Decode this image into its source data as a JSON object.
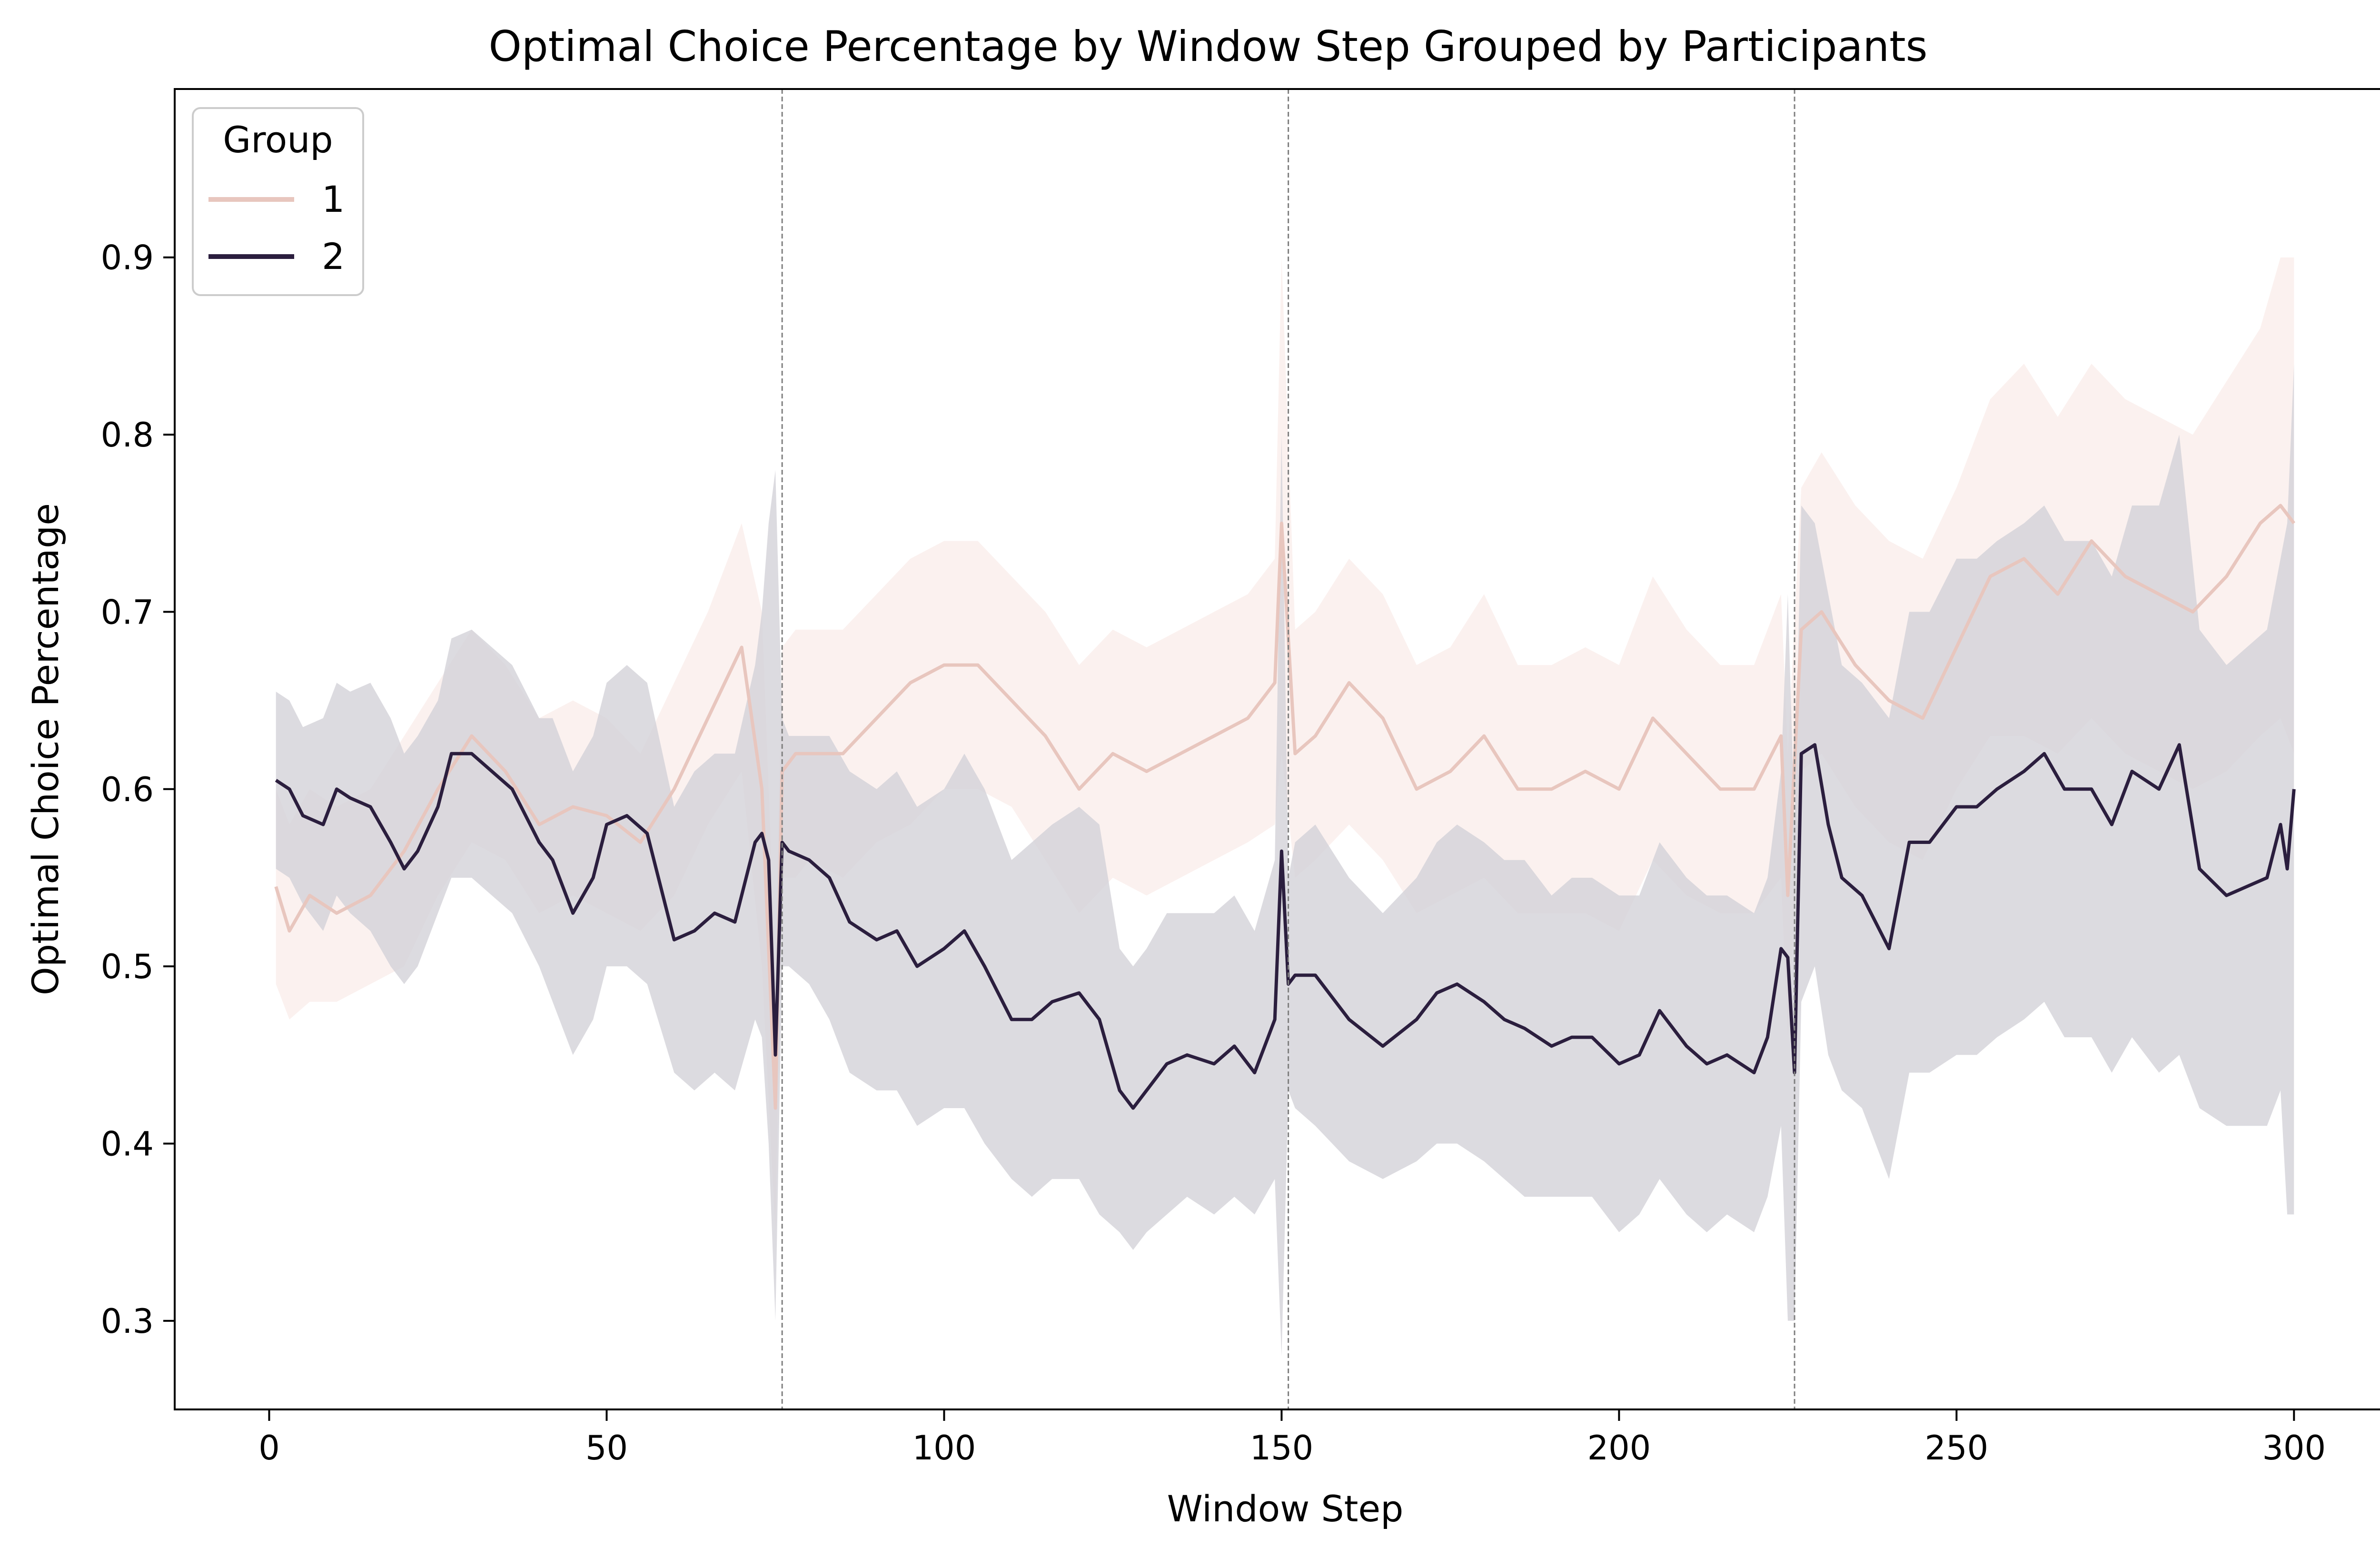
{
  "chart_data": {
    "type": "line",
    "title": "Optimal Choice Percentage by Window Step Grouped by Participants",
    "xlabel": "Window Step",
    "ylabel": "Optimal Choice Percentage",
    "xlim": [
      -14,
      315
    ],
    "ylim": [
      0.25,
      0.995
    ],
    "xticks": [
      0,
      50,
      100,
      150,
      200,
      250,
      300
    ],
    "xtick_labels": [
      "0",
      "50",
      "100",
      "150",
      "200",
      "250",
      "300"
    ],
    "yticks": [
      0.3,
      0.4,
      0.5,
      0.6,
      0.7,
      0.8,
      0.9
    ],
    "ytick_labels": [
      "0.3",
      "0.4",
      "0.5",
      "0.6",
      "0.7",
      "0.8",
      "0.9"
    ],
    "vlines": [
      76,
      151,
      226
    ],
    "legend": {
      "title": "Group",
      "placement": "upper left"
    },
    "series": [
      {
        "name": "1",
        "color": "#e8c6be",
        "band_color": "#f7e6e1",
        "x": [
          1,
          3,
          6,
          10,
          15,
          20,
          25,
          30,
          35,
          40,
          45,
          50,
          55,
          60,
          65,
          70,
          73,
          75,
          76,
          78,
          80,
          85,
          90,
          95,
          100,
          105,
          110,
          115,
          120,
          125,
          130,
          135,
          140,
          145,
          149,
          150,
          152,
          155,
          160,
          165,
          170,
          175,
          180,
          185,
          190,
          195,
          200,
          205,
          210,
          215,
          220,
          224,
          225,
          227,
          230,
          235,
          240,
          245,
          250,
          255,
          260,
          265,
          270,
          275,
          280,
          285,
          290,
          295,
          298,
          300
        ],
        "y": [
          0.545,
          0.52,
          0.54,
          0.53,
          0.54,
          0.565,
          0.6,
          0.63,
          0.61,
          0.58,
          0.59,
          0.585,
          0.57,
          0.6,
          0.64,
          0.68,
          0.6,
          0.42,
          0.61,
          0.62,
          0.62,
          0.62,
          0.64,
          0.66,
          0.67,
          0.67,
          0.65,
          0.63,
          0.6,
          0.62,
          0.61,
          0.62,
          0.63,
          0.64,
          0.66,
          0.75,
          0.62,
          0.63,
          0.66,
          0.64,
          0.6,
          0.61,
          0.63,
          0.6,
          0.6,
          0.61,
          0.6,
          0.64,
          0.62,
          0.6,
          0.6,
          0.63,
          0.54,
          0.69,
          0.7,
          0.67,
          0.65,
          0.64,
          0.68,
          0.72,
          0.73,
          0.71,
          0.74,
          0.72,
          0.71,
          0.7,
          0.72,
          0.75,
          0.76,
          0.75
        ],
        "lower": [
          0.49,
          0.47,
          0.48,
          0.48,
          0.49,
          0.5,
          0.54,
          0.57,
          0.56,
          0.53,
          0.54,
          0.53,
          0.52,
          0.54,
          0.58,
          0.61,
          0.5,
          0.35,
          0.55,
          0.55,
          0.56,
          0.55,
          0.57,
          0.58,
          0.6,
          0.6,
          0.59,
          0.56,
          0.53,
          0.55,
          0.54,
          0.55,
          0.56,
          0.57,
          0.58,
          0.62,
          0.55,
          0.56,
          0.58,
          0.56,
          0.53,
          0.54,
          0.55,
          0.53,
          0.53,
          0.53,
          0.52,
          0.56,
          0.54,
          0.53,
          0.53,
          0.55,
          0.46,
          0.61,
          0.62,
          0.59,
          0.57,
          0.56,
          0.6,
          0.63,
          0.63,
          0.62,
          0.64,
          0.62,
          0.61,
          0.6,
          0.61,
          0.63,
          0.64,
          0.62
        ],
        "upper": [
          0.6,
          0.58,
          0.6,
          0.59,
          0.6,
          0.63,
          0.66,
          0.69,
          0.67,
          0.64,
          0.65,
          0.64,
          0.62,
          0.66,
          0.7,
          0.75,
          0.7,
          0.5,
          0.68,
          0.69,
          0.69,
          0.69,
          0.71,
          0.73,
          0.74,
          0.74,
          0.72,
          0.7,
          0.67,
          0.69,
          0.68,
          0.69,
          0.7,
          0.71,
          0.73,
          0.9,
          0.69,
          0.7,
          0.73,
          0.71,
          0.67,
          0.68,
          0.71,
          0.67,
          0.67,
          0.68,
          0.67,
          0.72,
          0.69,
          0.67,
          0.67,
          0.71,
          0.62,
          0.77,
          0.79,
          0.76,
          0.74,
          0.73,
          0.77,
          0.82,
          0.84,
          0.81,
          0.84,
          0.82,
          0.81,
          0.8,
          0.83,
          0.86,
          0.9,
          0.9
        ]
      },
      {
        "name": "2",
        "color": "#2b1e3e",
        "band_color": "#d3d2d8",
        "x": [
          1,
          3,
          5,
          8,
          10,
          12,
          15,
          18,
          20,
          22,
          25,
          27,
          30,
          33,
          36,
          40,
          42,
          45,
          48,
          50,
          53,
          56,
          60,
          63,
          66,
          69,
          72,
          73,
          74,
          75,
          76,
          77,
          80,
          83,
          86,
          90,
          93,
          96,
          100,
          103,
          106,
          110,
          113,
          116,
          120,
          123,
          126,
          128,
          130,
          133,
          136,
          140,
          143,
          146,
          149,
          150,
          151,
          152,
          155,
          160,
          165,
          170,
          173,
          176,
          180,
          183,
          186,
          190,
          193,
          196,
          200,
          203,
          206,
          210,
          213,
          216,
          220,
          222,
          224,
          225,
          226,
          227,
          229,
          231,
          233,
          236,
          240,
          243,
          246,
          250,
          253,
          256,
          260,
          263,
          266,
          270,
          273,
          276,
          280,
          283,
          286,
          290,
          293,
          296,
          298,
          299,
          300
        ],
        "y": [
          0.605,
          0.6,
          0.585,
          0.58,
          0.6,
          0.595,
          0.59,
          0.57,
          0.555,
          0.565,
          0.59,
          0.62,
          0.62,
          0.61,
          0.6,
          0.57,
          0.56,
          0.53,
          0.55,
          0.58,
          0.585,
          0.575,
          0.515,
          0.52,
          0.53,
          0.525,
          0.57,
          0.575,
          0.56,
          0.45,
          0.57,
          0.565,
          0.56,
          0.55,
          0.525,
          0.515,
          0.52,
          0.5,
          0.51,
          0.52,
          0.5,
          0.47,
          0.47,
          0.48,
          0.485,
          0.47,
          0.43,
          0.42,
          0.43,
          0.445,
          0.45,
          0.445,
          0.455,
          0.44,
          0.47,
          0.565,
          0.49,
          0.495,
          0.495,
          0.47,
          0.455,
          0.47,
          0.485,
          0.49,
          0.48,
          0.47,
          0.465,
          0.455,
          0.46,
          0.46,
          0.445,
          0.45,
          0.475,
          0.455,
          0.445,
          0.45,
          0.44,
          0.46,
          0.51,
          0.505,
          0.44,
          0.62,
          0.625,
          0.58,
          0.55,
          0.54,
          0.51,
          0.57,
          0.57,
          0.59,
          0.59,
          0.6,
          0.61,
          0.62,
          0.6,
          0.6,
          0.58,
          0.61,
          0.6,
          0.625,
          0.555,
          0.54,
          0.545,
          0.55,
          0.58,
          0.555,
          0.6
        ],
        "lower": [
          0.555,
          0.55,
          0.535,
          0.52,
          0.54,
          0.53,
          0.52,
          0.5,
          0.49,
          0.5,
          0.53,
          0.55,
          0.55,
          0.54,
          0.53,
          0.5,
          0.48,
          0.45,
          0.47,
          0.5,
          0.5,
          0.49,
          0.44,
          0.43,
          0.44,
          0.43,
          0.47,
          0.46,
          0.4,
          0.3,
          0.5,
          0.5,
          0.49,
          0.47,
          0.44,
          0.43,
          0.43,
          0.41,
          0.42,
          0.42,
          0.4,
          0.38,
          0.37,
          0.38,
          0.38,
          0.36,
          0.35,
          0.34,
          0.35,
          0.36,
          0.37,
          0.36,
          0.37,
          0.36,
          0.38,
          0.28,
          0.43,
          0.42,
          0.41,
          0.39,
          0.38,
          0.39,
          0.4,
          0.4,
          0.39,
          0.38,
          0.37,
          0.37,
          0.37,
          0.37,
          0.35,
          0.36,
          0.38,
          0.36,
          0.35,
          0.36,
          0.35,
          0.37,
          0.41,
          0.3,
          0.3,
          0.48,
          0.5,
          0.45,
          0.43,
          0.42,
          0.38,
          0.44,
          0.44,
          0.45,
          0.45,
          0.46,
          0.47,
          0.48,
          0.46,
          0.46,
          0.44,
          0.46,
          0.44,
          0.45,
          0.42,
          0.41,
          0.41,
          0.41,
          0.43,
          0.36,
          0.36
        ],
        "upper": [
          0.655,
          0.65,
          0.635,
          0.64,
          0.66,
          0.655,
          0.66,
          0.64,
          0.62,
          0.63,
          0.65,
          0.685,
          0.69,
          0.68,
          0.67,
          0.64,
          0.64,
          0.61,
          0.63,
          0.66,
          0.67,
          0.66,
          0.59,
          0.61,
          0.62,
          0.62,
          0.67,
          0.7,
          0.75,
          0.78,
          0.64,
          0.63,
          0.63,
          0.63,
          0.61,
          0.6,
          0.61,
          0.59,
          0.6,
          0.62,
          0.6,
          0.56,
          0.57,
          0.58,
          0.59,
          0.58,
          0.51,
          0.5,
          0.51,
          0.53,
          0.53,
          0.53,
          0.54,
          0.52,
          0.56,
          0.8,
          0.55,
          0.57,
          0.58,
          0.55,
          0.53,
          0.55,
          0.57,
          0.58,
          0.57,
          0.56,
          0.56,
          0.54,
          0.55,
          0.55,
          0.54,
          0.54,
          0.57,
          0.55,
          0.54,
          0.54,
          0.53,
          0.55,
          0.61,
          0.71,
          0.58,
          0.76,
          0.75,
          0.71,
          0.67,
          0.66,
          0.64,
          0.7,
          0.7,
          0.73,
          0.73,
          0.74,
          0.75,
          0.76,
          0.74,
          0.74,
          0.72,
          0.76,
          0.76,
          0.8,
          0.69,
          0.67,
          0.68,
          0.69,
          0.73,
          0.75,
          0.84
        ]
      }
    ]
  }
}
